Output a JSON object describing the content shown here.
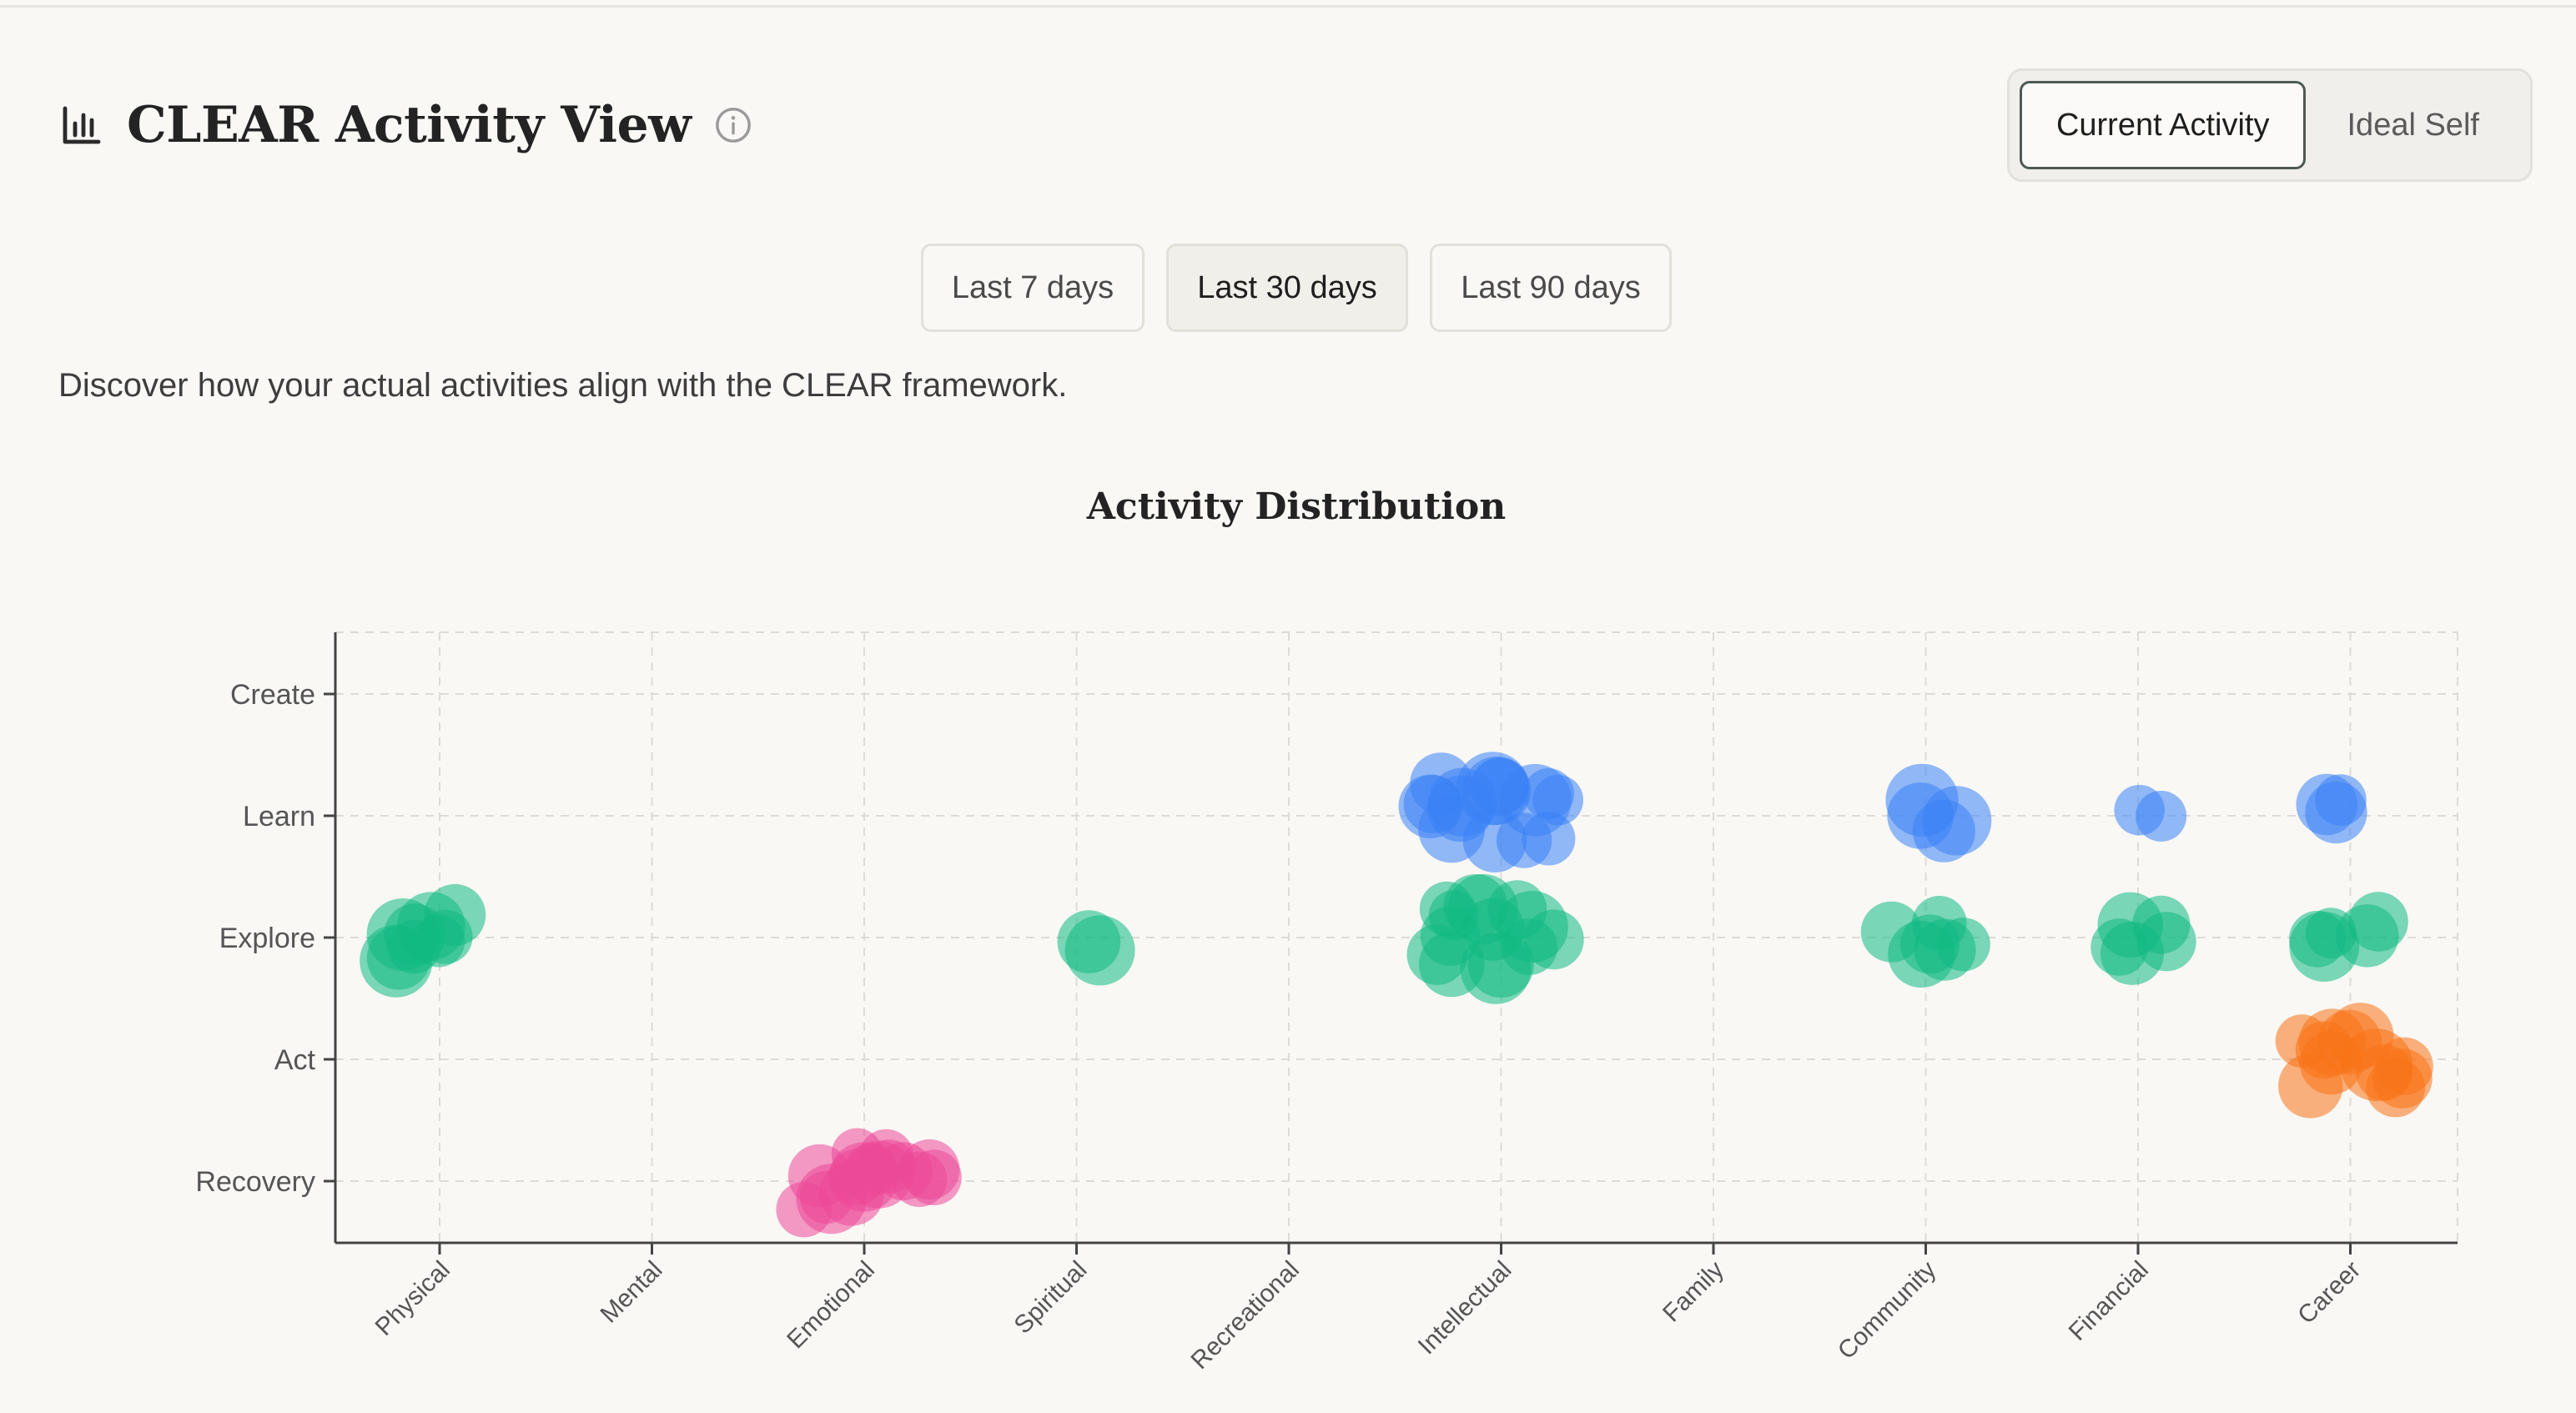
{
  "header": {
    "title": "CLEAR Activity View",
    "title_icon": "bar-chart-icon",
    "info_icon": "info-icon"
  },
  "mode_toggle": {
    "options": [
      "Current Activity",
      "Ideal Self"
    ],
    "selected": "Current Activity"
  },
  "time_range": {
    "options": [
      "Last 7 days",
      "Last 30 days",
      "Last 90 days"
    ],
    "selected": "Last 30 days"
  },
  "description": "Discover how your actual activities align with the CLEAR framework.",
  "colors": {
    "Create": "#8b5cf6",
    "Learn": "#3b82f6",
    "Explore": "#10b981",
    "Act": "#f97316",
    "Recovery": "#ec4899"
  },
  "chart_data": {
    "type": "scatter",
    "title": "Activity Distribution",
    "x_categories": [
      "Physical",
      "Mental",
      "Emotional",
      "Spiritual",
      "Recreational",
      "Intellectual",
      "Family",
      "Community",
      "Financial",
      "Career"
    ],
    "y_categories": [
      "Recovery",
      "Act",
      "Explore",
      "Learn",
      "Create"
    ],
    "grid": true,
    "points": [
      {
        "x": "Physical",
        "y": "Explore",
        "count": 9
      },
      {
        "x": "Emotional",
        "y": "Recovery",
        "count": 16
      },
      {
        "x": "Spiritual",
        "y": "Explore",
        "count": 2
      },
      {
        "x": "Intellectual",
        "y": "Learn",
        "count": 16
      },
      {
        "x": "Intellectual",
        "y": "Explore",
        "count": 14
      },
      {
        "x": "Community",
        "y": "Learn",
        "count": 4
      },
      {
        "x": "Community",
        "y": "Explore",
        "count": 6
      },
      {
        "x": "Financial",
        "y": "Learn",
        "count": 2
      },
      {
        "x": "Financial",
        "y": "Explore",
        "count": 5
      },
      {
        "x": "Career",
        "y": "Learn",
        "count": 3
      },
      {
        "x": "Career",
        "y": "Explore",
        "count": 5
      },
      {
        "x": "Career",
        "y": "Act",
        "count": 12
      }
    ]
  }
}
